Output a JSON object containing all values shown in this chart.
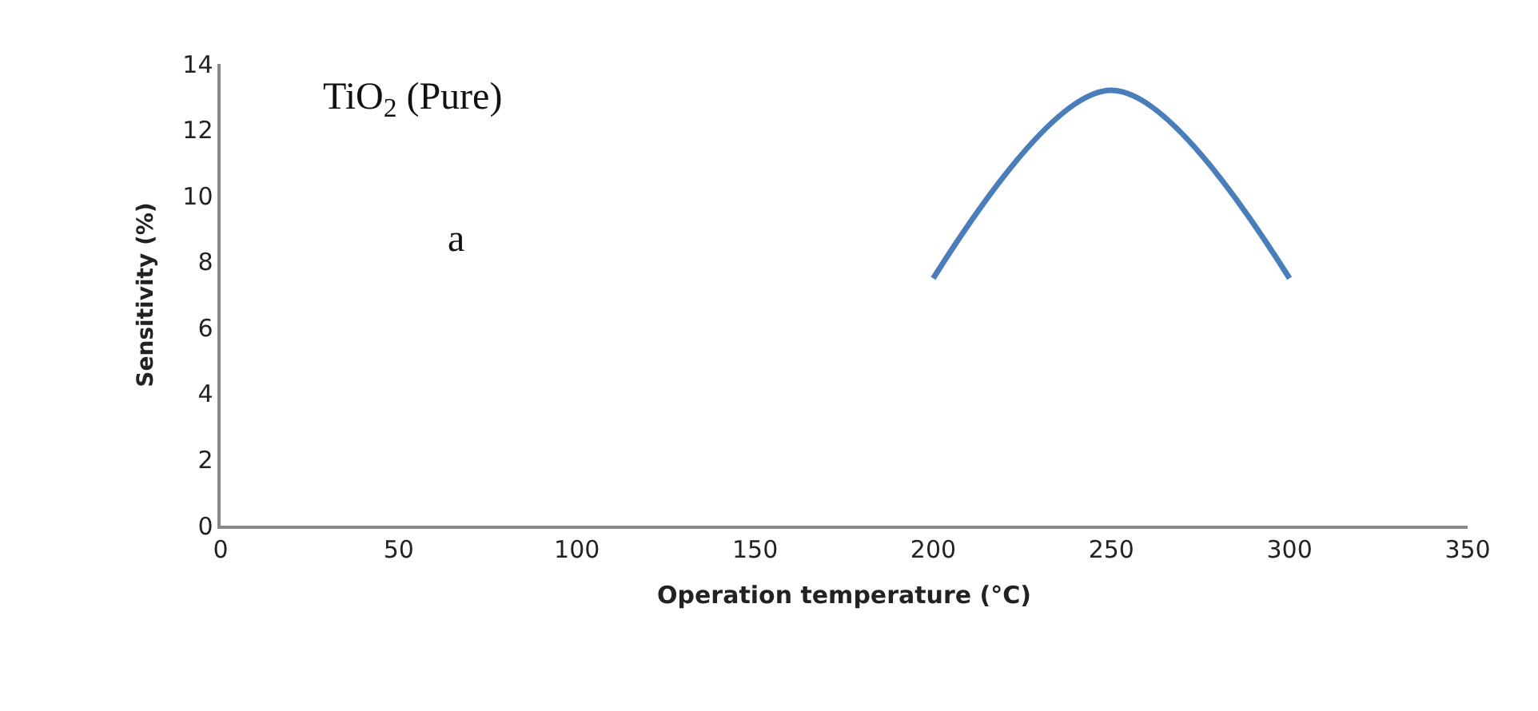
{
  "chart_data": {
    "type": "line",
    "x": [
      200,
      250,
      300
    ],
    "series": [
      {
        "color": "#4a7ebb",
        "values": [
          7.5,
          13.2,
          7.5
        ]
      }
    ],
    "xlabel": "Operation temperature (°C)",
    "ylabel": "Sensitivity (%)",
    "annotations": [
      "TiO$_{2}$ (Pure)",
      "a"
    ],
    "xlim": [
      0,
      350
    ],
    "xticks": [
      0,
      50,
      100,
      150,
      200,
      250,
      300,
      350
    ],
    "ylim": [
      0,
      14
    ],
    "yticks": [
      0,
      2,
      4,
      6,
      8,
      10,
      12,
      14
    ],
    "marker": "none",
    "line_style": "solid"
  }
}
